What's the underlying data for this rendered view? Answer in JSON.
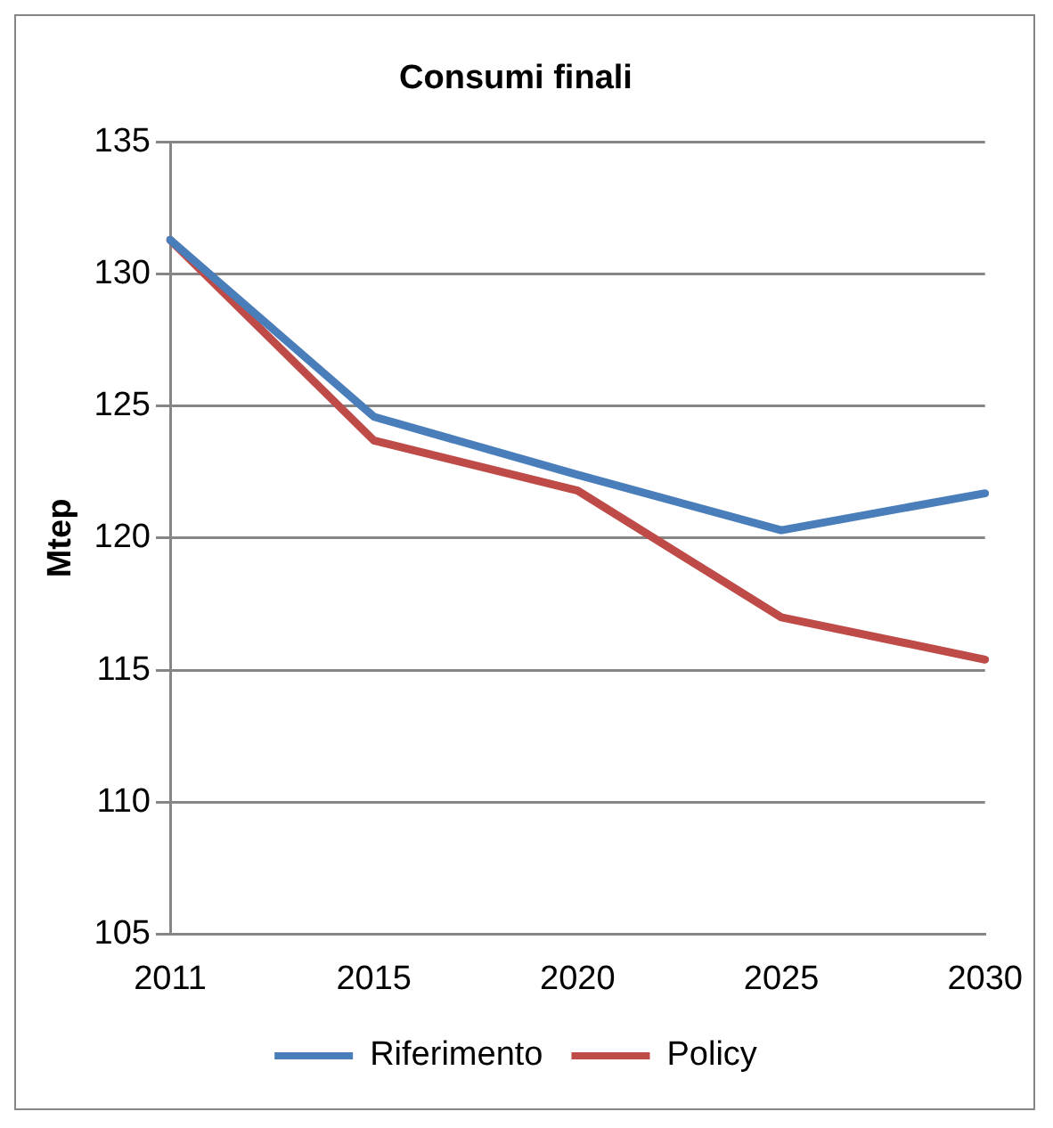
{
  "chart_data": {
    "type": "line",
    "title": "Consumi finali",
    "ylabel": "Mtep",
    "categories": [
      "2011",
      "2015",
      "2020",
      "2025",
      "2030"
    ],
    "series": [
      {
        "name": "Riferimento",
        "color": "#4a7ebb",
        "values": [
          131.3,
          124.6,
          122.4,
          120.3,
          121.7
        ]
      },
      {
        "name": "Policy",
        "color": "#be4b48",
        "values": [
          131.3,
          123.7,
          121.8,
          117.0,
          115.4
        ]
      }
    ],
    "ylim": [
      105,
      135
    ],
    "yticks": [
      105,
      110,
      115,
      120,
      125,
      130,
      135
    ],
    "grid": "y",
    "legend": "bottom",
    "marker": "none",
    "line_style": "solid"
  }
}
